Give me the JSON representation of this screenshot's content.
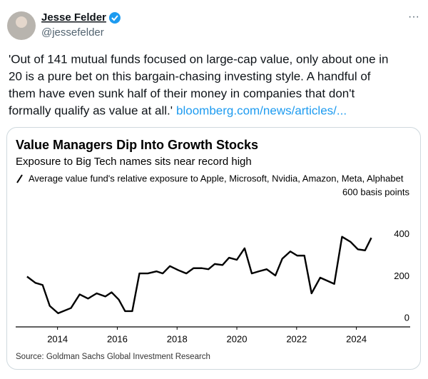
{
  "tweet": {
    "author": "Jesse Felder",
    "handle": "@jessefelder",
    "text_lines": [
      "'Out of 141 mutual funds focused on large-cap value, only about one in",
      "20 is a pure bet on this bargain-chasing investing style. A handful of",
      "them have even sunk half of their money in companies that don't",
      "formally qualify as value at all.'"
    ],
    "link": "bloomberg.com/news/articles/..."
  },
  "chart_data": {
    "type": "line",
    "title": "Value Managers Dip Into Growth Stocks",
    "subtitle": "Exposure to Big Tech names sits near record high",
    "source": "Source: Goldman Sachs Global Investment Research",
    "x": [
      2012.98,
      2013.26,
      2013.5,
      2013.74,
      2014.02,
      2014.45,
      2014.74,
      2015.02,
      2015.31,
      2015.6,
      2015.81,
      2016.05,
      2016.26,
      2016.5,
      2016.74,
      2017.02,
      2017.31,
      2017.52,
      2017.76,
      2018.05,
      2018.31,
      2018.55,
      2018.83,
      2019.05,
      2019.26,
      2019.52,
      2019.74,
      2020.0,
      2020.26,
      2020.5,
      2020.74,
      2021.0,
      2021.29,
      2021.52,
      2021.79,
      2022.02,
      2022.26,
      2022.5,
      2022.79,
      2023.26,
      2023.52,
      2023.81,
      2024.05,
      2024.29,
      2024.5
    ],
    "series": [
      {
        "name": "Average value fund's relative exposure to Apple, Microsoft, Nvidia, Amazon, Meta, Alphabet",
        "color": "#000000",
        "values": [
          200,
          170,
          160,
          60,
          25,
          50,
          115,
          95,
          120,
          105,
          125,
          90,
          35,
          35,
          215,
          215,
          225,
          215,
          250,
          230,
          215,
          240,
          240,
          235,
          260,
          255,
          290,
          280,
          335,
          215,
          225,
          235,
          205,
          285,
          320,
          300,
          300,
          120,
          195,
          165,
          390,
          365,
          330,
          325,
          385
        ]
      }
    ],
    "xlim": [
      2012.6,
      2025.8
    ],
    "xticks": [
      2014,
      2016,
      2018,
      2020,
      2022,
      2024
    ],
    "ylim": [
      -40,
      600
    ],
    "yticks": [
      0,
      200,
      400,
      {
        "value": 600,
        "label": "600 basis points"
      }
    ],
    "grid": false
  }
}
